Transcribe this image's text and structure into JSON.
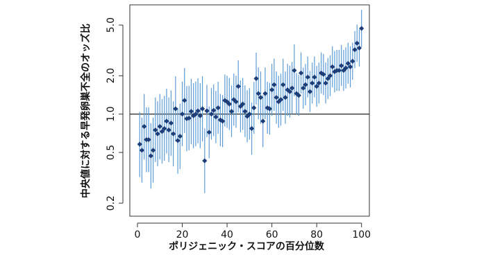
{
  "chart_data": {
    "type": "errorbar-scatter",
    "x_label": "ポリジェニック・スコアの百分位数",
    "y_label": "中央値に対する早発卵巣不全のオッズ比",
    "xlim": [
      -3.4,
      103.5
    ],
    "xticks": [
      0,
      20,
      40,
      60,
      80,
      100
    ],
    "ylim": [
      0.158,
      7.2
    ],
    "ylog": true,
    "yticks": [
      0.2,
      0.5,
      {
        "value": 1,
        "label": "1.0"
      },
      {
        "value": 2,
        "label": "2.0"
      },
      {
        "value": 5,
        "label": "5.0"
      }
    ],
    "hline": 1,
    "x": [
      1,
      2,
      3,
      4,
      5,
      6,
      7,
      8,
      9,
      10,
      11,
      12,
      13,
      14,
      15,
      16,
      17,
      18,
      19,
      20,
      21,
      22,
      23,
      24,
      25,
      26,
      27,
      28,
      29,
      30,
      31,
      32,
      33,
      34,
      35,
      36,
      37,
      38,
      39,
      40,
      41,
      42,
      43,
      44,
      45,
      46,
      47,
      48,
      49,
      50,
      51,
      52,
      53,
      54,
      55,
      56,
      57,
      58,
      59,
      60,
      61,
      62,
      63,
      64,
      65,
      66,
      67,
      68,
      69,
      70,
      71,
      72,
      73,
      74,
      75,
      76,
      77,
      78,
      79,
      80,
      81,
      82,
      83,
      84,
      85,
      86,
      87,
      88,
      89,
      90,
      91,
      92,
      93,
      94,
      95,
      96,
      97,
      98,
      99,
      100
    ],
    "series": [
      {
        "color": "#1c3d78",
        "bar_color": "#5b9bd5",
        "values": [
          0.58,
          0.52,
          0.8,
          0.63,
          0.63,
          0.47,
          0.52,
          0.75,
          0.7,
          0.8,
          0.73,
          0.77,
          0.88,
          0.75,
          0.85,
          0.7,
          1.1,
          0.62,
          0.67,
          1.0,
          1.28,
          0.92,
          0.93,
          1.05,
          0.97,
          1.0,
          1.06,
          0.97,
          1.1,
          0.43,
          1.06,
          0.72,
          1.0,
          1.07,
          0.95,
          1.12,
          0.9,
          0.88,
          1.28,
          1.25,
          1.2,
          1.05,
          1.3,
          1.25,
          1.65,
          1.15,
          1.2,
          1.05,
          0.96,
          1.0,
          0.77,
          1.12,
          1.9,
          1.45,
          1.35,
          0.88,
          1.45,
          1.12,
          1.1,
          1.55,
          1.7,
          1.35,
          1.25,
          1.3,
          1.7,
          1.35,
          1.55,
          1.5,
          1.6,
          2.2,
          1.45,
          1.4,
          2.1,
          1.6,
          1.7,
          1.95,
          1.5,
          1.75,
          1.95,
          1.65,
          1.75,
          2.1,
          2.05,
          1.75,
          1.9,
          2.0,
          2.35,
          2.15,
          2.2,
          2.2,
          2.4,
          2.2,
          2.3,
          2.5,
          2.35,
          2.6,
          3.2,
          3.6,
          3.3,
          4.7
        ],
        "lower": [
          0.32,
          0.29,
          0.44,
          0.35,
          0.35,
          0.26,
          0.29,
          0.42,
          0.39,
          0.44,
          0.41,
          0.43,
          0.49,
          0.42,
          0.47,
          0.39,
          0.61,
          0.34,
          0.37,
          0.56,
          0.71,
          0.51,
          0.52,
          0.58,
          0.54,
          0.56,
          0.59,
          0.54,
          0.61,
          0.24,
          0.66,
          0.45,
          0.63,
          0.67,
          0.59,
          0.7,
          0.56,
          0.55,
          0.8,
          0.78,
          0.75,
          0.66,
          0.81,
          0.78,
          1.03,
          0.72,
          0.75,
          0.66,
          0.6,
          0.63,
          0.48,
          0.7,
          1.19,
          0.91,
          0.84,
          0.55,
          0.91,
          0.7,
          0.69,
          0.97,
          1.06,
          0.84,
          0.78,
          0.81,
          1.06,
          0.84,
          0.97,
          0.94,
          1.0,
          1.38,
          1.0,
          0.97,
          1.45,
          1.1,
          1.17,
          1.35,
          1.04,
          1.21,
          1.35,
          1.14,
          1.21,
          1.45,
          1.41,
          1.21,
          1.31,
          1.38,
          1.62,
          1.48,
          1.52,
          1.52,
          1.66,
          1.52,
          1.59,
          1.73,
          1.62,
          1.86,
          2.29,
          2.57,
          2.36,
          3.36
        ],
        "upper": [
          1.04,
          0.94,
          1.44,
          1.13,
          1.13,
          0.85,
          0.94,
          1.35,
          1.26,
          1.44,
          1.31,
          1.39,
          1.58,
          1.35,
          1.53,
          1.26,
          1.98,
          1.12,
          1.21,
          1.8,
          2.3,
          1.66,
          1.67,
          1.89,
          1.75,
          1.8,
          1.91,
          1.75,
          1.98,
          0.77,
          1.7,
          1.15,
          1.6,
          1.71,
          1.52,
          1.79,
          1.44,
          1.41,
          2.05,
          2.0,
          1.92,
          1.68,
          2.08,
          2.0,
          2.64,
          1.84,
          1.92,
          1.68,
          1.54,
          1.6,
          1.23,
          1.79,
          3.04,
          2.32,
          2.16,
          1.41,
          2.32,
          1.79,
          1.76,
          2.48,
          2.72,
          2.16,
          2.0,
          2.08,
          2.72,
          2.16,
          2.48,
          2.4,
          2.56,
          3.52,
          2.1,
          2.03,
          3.05,
          2.32,
          2.47,
          2.83,
          2.18,
          2.54,
          2.83,
          2.39,
          2.54,
          3.05,
          2.97,
          2.54,
          2.76,
          2.9,
          3.41,
          3.12,
          3.19,
          3.19,
          3.48,
          3.19,
          3.34,
          3.63,
          3.41,
          3.64,
          4.48,
          5.04,
          4.62,
          6.58
        ]
      }
    ]
  }
}
